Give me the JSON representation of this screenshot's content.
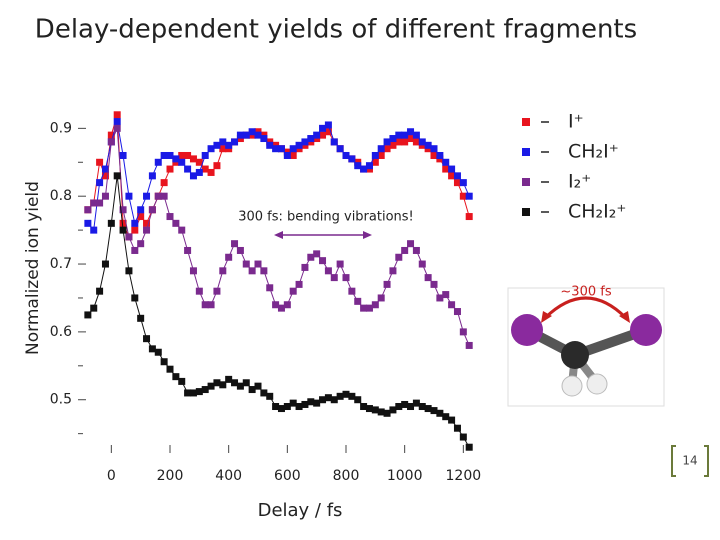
{
  "chart_data": {
    "type": "scatter",
    "title": "Delay-dependent yields of different fragments",
    "x_label": "Delay / fs",
    "y_label": "Normalized ion yield",
    "annotations": [
      "300 fs: bending vibrations!",
      "~300 fs"
    ],
    "page_number": "14",
    "xlim": [
      -100,
      1250
    ],
    "ylim": [
      0.42,
      0.93
    ],
    "xticks": [
      0,
      200,
      400,
      600,
      800,
      1000,
      1200
    ],
    "yticks": [
      0.5,
      0.6,
      0.7,
      0.8,
      0.9
    ],
    "yminorticks": [
      0.45,
      0.55,
      0.65,
      0.75,
      0.85
    ],
    "x": [
      -80,
      -60,
      -40,
      -20,
      0,
      20,
      40,
      60,
      80,
      100,
      120,
      140,
      160,
      180,
      200,
      220,
      240,
      260,
      280,
      300,
      320,
      340,
      360,
      380,
      400,
      420,
      440,
      460,
      480,
      500,
      520,
      540,
      560,
      580,
      600,
      620,
      640,
      660,
      680,
      700,
      720,
      740,
      760,
      780,
      800,
      820,
      840,
      860,
      880,
      900,
      920,
      940,
      960,
      980,
      1000,
      1020,
      1040,
      1060,
      1080,
      1100,
      1120,
      1140,
      1160,
      1180,
      1200,
      1220
    ],
    "series": [
      {
        "name": "I⁺",
        "color": "#e8141e",
        "values": [
          0.78,
          0.79,
          0.85,
          0.83,
          0.89,
          0.92,
          0.76,
          0.74,
          0.75,
          0.77,
          0.76,
          0.78,
          0.8,
          0.82,
          0.84,
          0.85,
          0.86,
          0.86,
          0.855,
          0.85,
          0.84,
          0.835,
          0.845,
          0.87,
          0.87,
          0.88,
          0.885,
          0.89,
          0.89,
          0.895,
          0.89,
          0.88,
          0.875,
          0.87,
          0.865,
          0.86,
          0.87,
          0.875,
          0.88,
          0.885,
          0.89,
          0.895,
          0.88,
          0.87,
          0.86,
          0.855,
          0.85,
          0.84,
          0.84,
          0.85,
          0.86,
          0.87,
          0.875,
          0.88,
          0.88,
          0.885,
          0.88,
          0.875,
          0.87,
          0.86,
          0.855,
          0.84,
          0.83,
          0.82,
          0.8,
          0.77
        ]
      },
      {
        "name": "CH₂I⁺",
        "color": "#1a1ae6",
        "values": [
          0.76,
          0.75,
          0.82,
          0.84,
          0.88,
          0.91,
          0.86,
          0.8,
          0.76,
          0.78,
          0.8,
          0.83,
          0.85,
          0.86,
          0.86,
          0.855,
          0.85,
          0.84,
          0.83,
          0.835,
          0.86,
          0.87,
          0.875,
          0.88,
          0.875,
          0.88,
          0.89,
          0.89,
          0.895,
          0.89,
          0.885,
          0.875,
          0.87,
          0.87,
          0.86,
          0.87,
          0.875,
          0.88,
          0.885,
          0.89,
          0.9,
          0.905,
          0.88,
          0.87,
          0.86,
          0.855,
          0.845,
          0.84,
          0.845,
          0.86,
          0.87,
          0.88,
          0.885,
          0.89,
          0.89,
          0.895,
          0.89,
          0.88,
          0.875,
          0.87,
          0.86,
          0.85,
          0.84,
          0.83,
          0.82,
          0.8
        ]
      },
      {
        "name": "I₂⁺",
        "color": "#7a2a8e",
        "values": [
          0.78,
          0.79,
          0.79,
          0.8,
          0.88,
          0.9,
          0.78,
          0.74,
          0.72,
          0.73,
          0.75,
          0.78,
          0.8,
          0.8,
          0.77,
          0.76,
          0.75,
          0.72,
          0.69,
          0.66,
          0.64,
          0.64,
          0.66,
          0.69,
          0.71,
          0.73,
          0.72,
          0.7,
          0.69,
          0.7,
          0.69,
          0.665,
          0.64,
          0.635,
          0.64,
          0.66,
          0.67,
          0.695,
          0.71,
          0.715,
          0.705,
          0.69,
          0.68,
          0.7,
          0.68,
          0.66,
          0.645,
          0.635,
          0.635,
          0.64,
          0.65,
          0.67,
          0.69,
          0.71,
          0.72,
          0.73,
          0.72,
          0.7,
          0.68,
          0.67,
          0.65,
          0.655,
          0.64,
          0.63,
          0.6,
          0.58
        ]
      },
      {
        "name": "CH₂I₂⁺",
        "color": "#111111",
        "values": [
          0.625,
          0.635,
          0.66,
          0.7,
          0.76,
          0.83,
          0.75,
          0.69,
          0.65,
          0.62,
          0.59,
          0.575,
          0.57,
          0.556,
          0.545,
          0.534,
          0.527,
          0.51,
          0.51,
          0.512,
          0.515,
          0.52,
          0.525,
          0.522,
          0.53,
          0.525,
          0.52,
          0.525,
          0.515,
          0.52,
          0.51,
          0.505,
          0.49,
          0.487,
          0.49,
          0.495,
          0.49,
          0.493,
          0.497,
          0.495,
          0.5,
          0.503,
          0.5,
          0.505,
          0.508,
          0.505,
          0.5,
          0.49,
          0.487,
          0.485,
          0.482,
          0.48,
          0.485,
          0.49,
          0.493,
          0.49,
          0.495,
          0.49,
          0.487,
          0.484,
          0.48,
          0.475,
          0.47,
          0.458,
          0.445,
          0.43
        ]
      }
    ]
  }
}
